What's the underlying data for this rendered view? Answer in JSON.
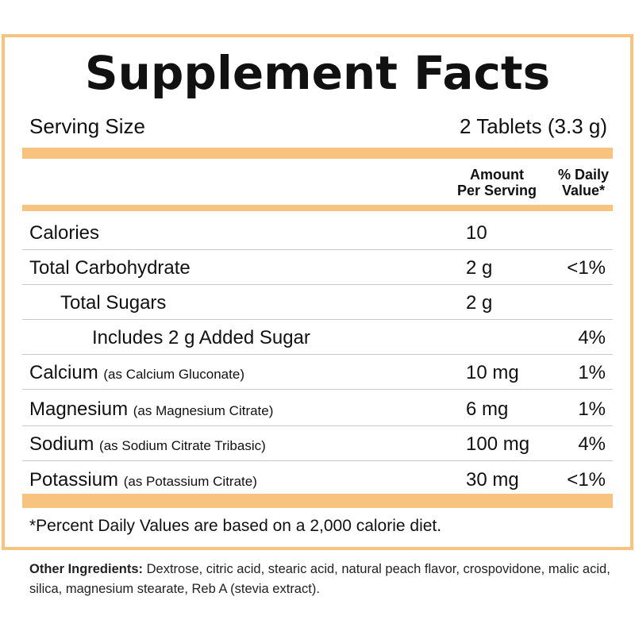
{
  "title": "Supplement Facts",
  "serving_size_label": "Serving Size",
  "serving_size_value": "2 Tablets (3.3 g)",
  "header": {
    "amount_line1": "Amount",
    "amount_line2": "Per Serving",
    "dv_line1": "% Daily",
    "dv_line2": "Value*"
  },
  "rows": [
    {
      "name": "Calories",
      "sub": "",
      "amount": "10",
      "dv": ""
    },
    {
      "name": "Total Carbohydrate",
      "sub": "",
      "amount": "2 g",
      "dv": "<1%"
    },
    {
      "name": "Total Sugars",
      "sub": "",
      "amount": "2 g",
      "dv": ""
    },
    {
      "name": "Includes 2 g Added Sugar",
      "sub": "",
      "amount": "",
      "dv": "4%"
    },
    {
      "name": "Calcium",
      "sub": "(as Calcium Gluconate)",
      "amount": "10 mg",
      "dv": "1%"
    },
    {
      "name": "Magnesium",
      "sub": "(as Magnesium Citrate)",
      "amount": "6 mg",
      "dv": "1%"
    },
    {
      "name": "Sodium",
      "sub": "(as Sodium Citrate Tribasic)",
      "amount": "100 mg",
      "dv": "4%"
    },
    {
      "name": "Potassium",
      "sub": "(as Potassium Citrate)",
      "amount": "30 mg",
      "dv": "<1%"
    }
  ],
  "footnote": "*Percent Daily Values are based on a 2,000 calorie diet.",
  "other_ingredients": {
    "label": "Other Ingredients:",
    "text": "Dextrose, citric acid, stearic acid, natural peach flavor, crospovidone, malic acid, silica, magnesium stearate, Reb A (stevia extract)."
  },
  "colors": {
    "accent": "#f8c27f",
    "divider": "#c9c9c9"
  }
}
